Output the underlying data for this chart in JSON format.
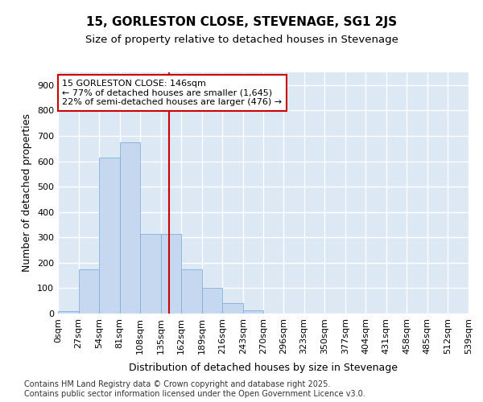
{
  "title": "15, GORLESTON CLOSE, STEVENAGE, SG1 2JS",
  "subtitle": "Size of property relative to detached houses in Stevenage",
  "xlabel": "Distribution of detached houses by size in Stevenage",
  "ylabel": "Number of detached properties",
  "bar_color": "#c5d8f0",
  "bar_edge_color": "#7fb0d8",
  "background_color": "#dde8f5",
  "grid_color": "#ffffff",
  "bins": [
    0,
    27,
    54,
    81,
    108,
    135,
    162,
    189,
    216,
    243,
    270,
    296,
    323,
    350,
    377,
    404,
    431,
    458,
    485,
    512,
    539
  ],
  "counts": [
    10,
    175,
    615,
    675,
    315,
    315,
    175,
    100,
    40,
    12,
    0,
    0,
    0,
    0,
    0,
    0,
    0,
    0,
    0,
    0
  ],
  "tick_labels": [
    "0sqm",
    "27sqm",
    "54sqm",
    "81sqm",
    "108sqm",
    "135sqm",
    "162sqm",
    "189sqm",
    "216sqm",
    "243sqm",
    "270sqm",
    "296sqm",
    "323sqm",
    "350sqm",
    "377sqm",
    "404sqm",
    "431sqm",
    "458sqm",
    "485sqm",
    "512sqm",
    "539sqm"
  ],
  "ylim": [
    0,
    950
  ],
  "yticks": [
    0,
    100,
    200,
    300,
    400,
    500,
    600,
    700,
    800,
    900
  ],
  "property_size": 146,
  "vline_color": "#cc0000",
  "annotation_line1": "15 GORLESTON CLOSE: 146sqm",
  "annotation_line2": "← 77% of detached houses are smaller (1,645)",
  "annotation_line3": "22% of semi-detached houses are larger (476) →",
  "annotation_box_color": "#ffffff",
  "annotation_box_edge": "#cc0000",
  "footer_text": "Contains HM Land Registry data © Crown copyright and database right 2025.\nContains public sector information licensed under the Open Government Licence v3.0.",
  "title_fontsize": 11,
  "subtitle_fontsize": 9.5,
  "axis_label_fontsize": 9,
  "tick_fontsize": 8,
  "footer_fontsize": 7,
  "fig_bg": "#ffffff"
}
